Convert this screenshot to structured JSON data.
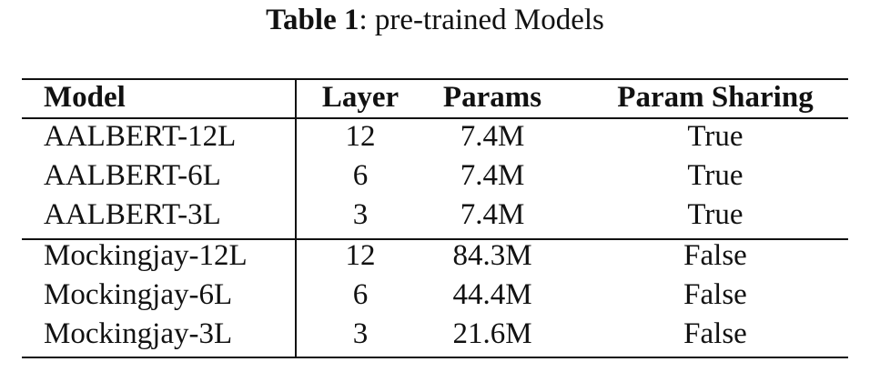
{
  "caption": {
    "label": "Table 1",
    "separator": ":",
    "text": "pre-trained Models"
  },
  "table": {
    "headers": {
      "model": "Model",
      "layer": "Layer",
      "params": "Params",
      "param_sharing": "Param Sharing"
    },
    "groups": [
      {
        "rows": [
          {
            "model": "AALBERT-12L",
            "layer": "12",
            "params": "7.4M",
            "param_sharing": "True"
          },
          {
            "model": "AALBERT-6L",
            "layer": "6",
            "params": "7.4M",
            "param_sharing": "True"
          },
          {
            "model": "AALBERT-3L",
            "layer": "3",
            "params": "7.4M",
            "param_sharing": "True"
          }
        ]
      },
      {
        "rows": [
          {
            "model": "Mockingjay-12L",
            "layer": "12",
            "params": "84.3M",
            "param_sharing": "False"
          },
          {
            "model": "Mockingjay-6L",
            "layer": "6",
            "params": "44.4M",
            "param_sharing": "False"
          },
          {
            "model": "Mockingjay-3L",
            "layer": "3",
            "params": "21.6M",
            "param_sharing": "False"
          }
        ]
      }
    ]
  }
}
